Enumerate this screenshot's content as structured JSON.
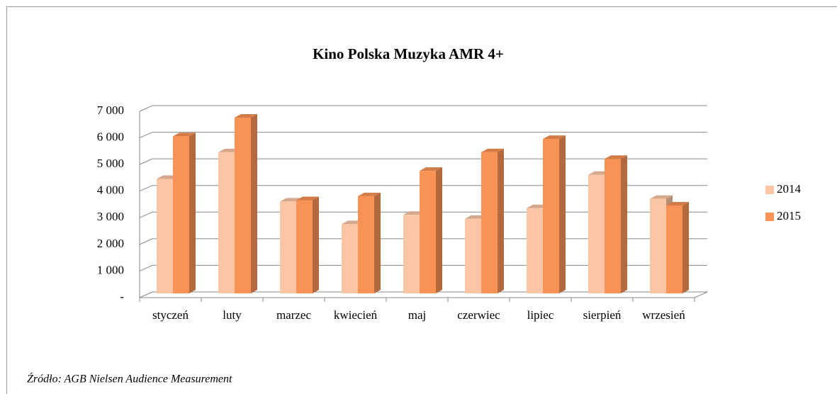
{
  "chart_data": {
    "type": "bar3d",
    "title": "Kino Polska Muzyka AMR 4+",
    "categories": [
      "styczeń",
      "luty",
      "marzec",
      "kwiecień",
      "maj",
      "czerwiec",
      "lipiec",
      "sierpień",
      "wrzesień"
    ],
    "series": [
      {
        "name": "2014",
        "color": "#fac6a6",
        "values": [
          4300,
          5300,
          3450,
          2600,
          2950,
          2800,
          3200,
          4450,
          3550
        ]
      },
      {
        "name": "2015",
        "color": "#f99255",
        "values": [
          5900,
          6600,
          3500,
          3650,
          4600,
          5300,
          5800,
          5050,
          3300
        ]
      }
    ],
    "ylim": [
      0,
      7000
    ],
    "yticks": [
      {
        "value": 0,
        "label": "-"
      },
      {
        "value": 1000,
        "label": "1 000"
      },
      {
        "value": 2000,
        "label": "2 000"
      },
      {
        "value": 3000,
        "label": "3 000"
      },
      {
        "value": 4000,
        "label": "4 000"
      },
      {
        "value": 5000,
        "label": "5 000"
      },
      {
        "value": 6000,
        "label": "6 000"
      },
      {
        "value": 7000,
        "label": "7 000"
      }
    ],
    "grid": true,
    "legend": "right",
    "source": "Źródło: AGB Nielsen Audience Measurement"
  }
}
